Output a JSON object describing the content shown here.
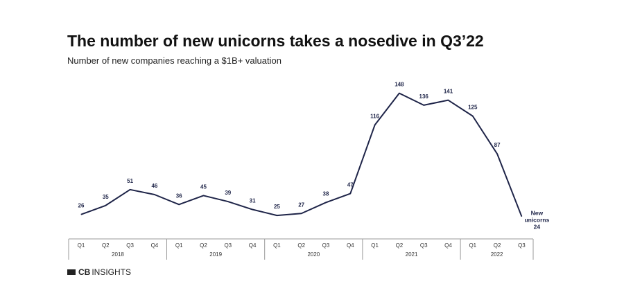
{
  "chart_data": {
    "type": "line",
    "title": "The number of new unicorns takes a nosedive in Q3’22",
    "subtitle": "Number of new companies reaching a $1B+ valuation",
    "quarters": [
      "Q1",
      "Q2",
      "Q3",
      "Q4",
      "Q1",
      "Q2",
      "Q3",
      "Q4",
      "Q1",
      "Q2",
      "Q3",
      "Q4",
      "Q1",
      "Q2",
      "Q3",
      "Q4",
      "Q1",
      "Q2",
      "Q3"
    ],
    "years": [
      {
        "label": "2018",
        "count": 4
      },
      {
        "label": "2019",
        "count": 4
      },
      {
        "label": "2020",
        "count": 4
      },
      {
        "label": "2021",
        "count": 4
      },
      {
        "label": "2022",
        "count": 3
      }
    ],
    "values": [
      26,
      35,
      51,
      46,
      36,
      45,
      39,
      31,
      25,
      27,
      38,
      47,
      116,
      148,
      136,
      141,
      125,
      87,
      24
    ],
    "last_annotation": [
      "New",
      "unicorns",
      "24"
    ],
    "line_color": "#1e2448",
    "ylim": [
      0,
      148
    ]
  },
  "brand": {
    "logo": "CBINSIGHTS",
    "logo_bold": "CB",
    "logo_rest": "INSIGHTS"
  }
}
